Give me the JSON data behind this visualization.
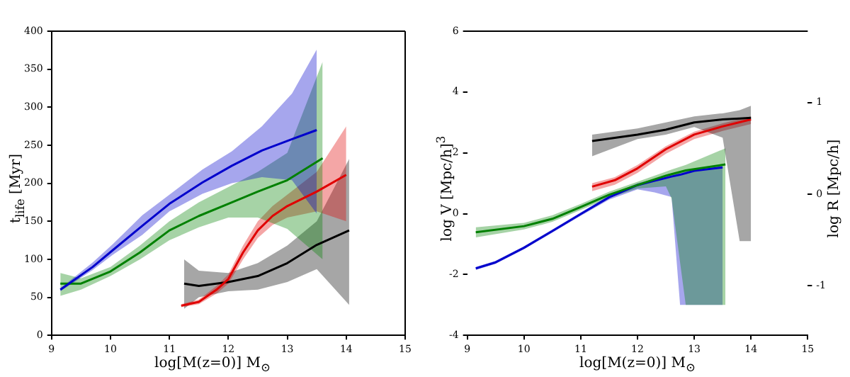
{
  "chart_data": [
    {
      "type": "line",
      "xlabel": "log[M(z=0)] M$_{⊙}$",
      "ylabel": "t$_{life}$ [Myr]",
      "xlim": [
        9,
        15
      ],
      "xticks": [
        9,
        10,
        11,
        12,
        13,
        14,
        15
      ],
      "ylim": [
        0,
        400
      ],
      "yticks": [
        0,
        50,
        100,
        150,
        200,
        250,
        300,
        350,
        400
      ],
      "grid": false,
      "legend": false,
      "series": [
        {
          "color": "#0000cc",
          "x": [
            9.15,
            9.7,
            10.04,
            10.54,
            11,
            11.56,
            12.06,
            12.57,
            13.08,
            13.5
          ],
          "values": [
            60,
            90,
            112,
            144,
            173,
            201,
            223,
            243,
            258,
            270
          ],
          "upper": [
            62,
            96,
            120,
            158,
            185,
            218,
            242,
            275,
            318,
            376
          ],
          "lower": [
            58,
            86,
            106,
            132,
            163,
            186,
            200,
            208,
            204,
            160
          ]
        },
        {
          "color": "#008000",
          "x": [
            9.15,
            9.5,
            10,
            10.5,
            11,
            11.5,
            12,
            12.5,
            13,
            13.6
          ],
          "values": [
            68,
            68,
            84,
            109,
            138,
            157,
            173,
            189,
            204,
            233
          ],
          "upper": [
            82,
            75,
            90,
            118,
            150,
            175,
            195,
            215,
            240,
            360
          ],
          "lower": [
            52,
            60,
            78,
            100,
            125,
            142,
            155,
            155,
            140,
            100
          ]
        },
        {
          "color": "#e00000",
          "x": [
            11.2,
            11.5,
            11.8,
            12,
            12.25,
            12.5,
            12.75,
            13,
            13.5,
            14
          ],
          "values": [
            39,
            44,
            60,
            74,
            109,
            138,
            157,
            170,
            189,
            211
          ],
          "upper": [
            41,
            47,
            65,
            80,
            118,
            150,
            170,
            185,
            215,
            275
          ],
          "lower": [
            37,
            41,
            55,
            68,
            100,
            128,
            145,
            155,
            163,
            150
          ]
        },
        {
          "color": "#000000",
          "x": [
            11.25,
            11.5,
            12,
            12.5,
            13,
            13.5,
            14.05
          ],
          "values": [
            68,
            65,
            70,
            78,
            95,
            119,
            138
          ],
          "upper": [
            100,
            85,
            82,
            95,
            118,
            150,
            232
          ],
          "lower": [
            35,
            50,
            58,
            60,
            70,
            87,
            40
          ]
        }
      ]
    },
    {
      "type": "line",
      "xlabel": "log[M(z=0)] M$_{⊙}$",
      "ylabel": "log V [Mpc/h]$^{3}$",
      "y2label": "log R [Mpc/h]",
      "xlim": [
        9,
        15
      ],
      "xticks": [
        9,
        10,
        11,
        12,
        13,
        14,
        15
      ],
      "ylim": [
        -4,
        6
      ],
      "yticks": [
        -4,
        -2,
        0,
        2,
        4,
        6
      ],
      "y2lim": [
        -1.54,
        1.78
      ],
      "y2ticks": [
        -1,
        0,
        1
      ],
      "grid": false,
      "legend": false,
      "series": [
        {
          "color": "#000000",
          "x": [
            11.2,
            12,
            12.5,
            13,
            13.5,
            13.8,
            14
          ],
          "values": [
            2.39,
            2.6,
            2.76,
            3.0,
            3.1,
            3.13,
            3.15
          ],
          "upper": [
            2.6,
            2.8,
            3.0,
            3.2,
            3.3,
            3.4,
            3.55
          ],
          "lower": [
            1.89,
            2.45,
            2.6,
            2.85,
            2.5,
            -0.9,
            -0.9
          ]
        },
        {
          "color": "#e00000",
          "x": [
            11.2,
            11.6,
            12,
            12.5,
            13,
            13.5,
            14
          ],
          "values": [
            0.89,
            1.1,
            1.49,
            2.12,
            2.6,
            2.87,
            3.1
          ],
          "upper": [
            1.0,
            1.2,
            1.6,
            2.22,
            2.7,
            2.97,
            3.2
          ],
          "lower": [
            0.74,
            0.95,
            1.34,
            1.97,
            2.45,
            2.72,
            2.95
          ]
        },
        {
          "color": "#008000",
          "x": [
            9.15,
            10,
            10.5,
            11,
            11.5,
            12,
            12.5,
            12.6,
            12.85,
            13.55
          ],
          "values": [
            -0.61,
            -0.41,
            -0.17,
            0.22,
            0.62,
            0.94,
            1.25,
            1.3,
            1.42,
            1.62
          ],
          "upper": [
            -0.45,
            -0.3,
            -0.05,
            0.32,
            0.72,
            1.05,
            1.38,
            1.45,
            1.6,
            2.15
          ],
          "lower": [
            -0.78,
            -0.52,
            -0.27,
            0.12,
            0.52,
            0.83,
            0.9,
            0.5,
            -3,
            -3
          ]
        },
        {
          "color": "#0000cc",
          "x": [
            9.15,
            9.5,
            10,
            10.5,
            11,
            11.5,
            12,
            12.3,
            12.6,
            12.75,
            13,
            13.5
          ],
          "values": [
            -1.8,
            -1.6,
            -1.12,
            -0.57,
            -0.01,
            0.54,
            0.94,
            1.08,
            1.22,
            1.28,
            1.41,
            1.52
          ],
          "upper": [
            -1.75,
            -1.55,
            -1.07,
            -0.52,
            0.04,
            0.6,
            1.0,
            1.14,
            1.28,
            1.34,
            1.46,
            1.57
          ],
          "lower": [
            -1.85,
            -1.65,
            -1.17,
            -0.62,
            -0.07,
            0.46,
            0.8,
            0.7,
            0.55,
            -3,
            -3,
            -3
          ]
        }
      ]
    }
  ]
}
